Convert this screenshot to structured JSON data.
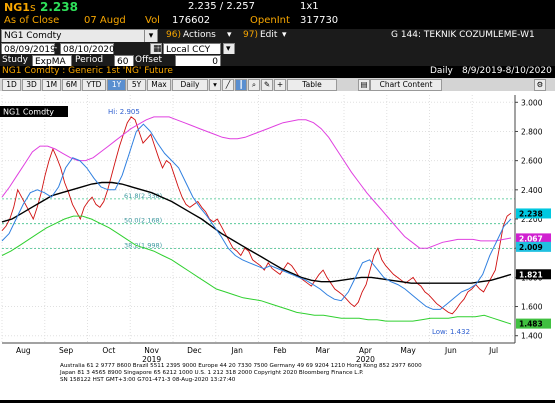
{
  "quote": {
    "ticker": "NG1",
    "s_prefix": "s",
    "last": "2.238",
    "bid_ask": "2.235 / 2.257",
    "size": "1x1",
    "as_of_label": "As of Close",
    "as_of_date": "07 Augd",
    "vol_label": "Vol",
    "vol_value": "176602",
    "oi_label": "OpenInt",
    "oi_value": "317730"
  },
  "titlebar": {
    "security": "NG1 Comdty",
    "num_96": "96)",
    "actions": "Actions",
    "num_97": "97)",
    "edit": "Edit",
    "screen_title": "G 144: TEKNIK COZUMLEME-W1"
  },
  "params": {
    "date_from": "08/09/2019",
    "date_to": "08/10/2020",
    "currency": "Local CCY",
    "study_label": "Study",
    "study_value": "ExpMA",
    "period_label": "Period",
    "period_value": "60",
    "offset_label": "Offset",
    "offset_value": "0"
  },
  "description": {
    "text": "NG1 Comdty : Generic 1st 'NG' Future",
    "freq": "Daily",
    "range": "8/9/2019-8/10/2020"
  },
  "toolbar": {
    "periods": [
      "1D",
      "3D",
      "1M",
      "6M",
      "YTD",
      "1Y",
      "5Y",
      "Max"
    ],
    "selected": "1Y",
    "freq": "Daily",
    "table": "Table",
    "chart_content": "Chart Content"
  },
  "chart_data": {
    "type": "line",
    "ylim": [
      1.35,
      3.05
    ],
    "y_ticks": [
      "3.000",
      "2.800",
      "2.600",
      "2.400",
      "2.200",
      "2.000",
      "1.800",
      "1.600",
      "1.400"
    ],
    "x_labels": [
      "Aug",
      "Sep",
      "Oct",
      "Nov",
      "Dec",
      "Jan",
      "Feb",
      "Mar",
      "Apr",
      "May",
      "Jun",
      "Jul"
    ],
    "year_labels": [
      "2019",
      "2020"
    ],
    "hi_label": "Hi: 2.905",
    "low_label": "Low: 1.432",
    "fib_levels": [
      {
        "label": "61.8(2.338)",
        "value": 2.338
      },
      {
        "label": "50.0(2.168)",
        "value": 2.168
      },
      {
        "label": "38.2(1.998)",
        "value": 1.998
      }
    ],
    "legend": {
      "security": "NG1 Comdty"
    },
    "price_tags": [
      {
        "value": "2.238",
        "color": "#00c8e0"
      },
      {
        "value": "2.067",
        "color": "#d020d0"
      },
      {
        "value": "2.009",
        "color": "#20c0e0"
      },
      {
        "value": "1.821",
        "color": "#000000"
      },
      {
        "value": "1.483",
        "color": "#40c040"
      }
    ],
    "series": [
      {
        "name": "price",
        "color": "#d01010",
        "values": [
          2.12,
          2.15,
          2.2,
          2.28,
          2.4,
          2.35,
          2.3,
          2.25,
          2.2,
          2.28,
          2.38,
          2.5,
          2.6,
          2.68,
          2.62,
          2.55,
          2.45,
          2.38,
          2.3,
          2.25,
          2.2,
          2.28,
          2.32,
          2.35,
          2.3,
          2.28,
          2.32,
          2.4,
          2.5,
          2.6,
          2.7,
          2.78,
          2.86,
          2.9,
          2.88,
          2.8,
          2.72,
          2.75,
          2.78,
          2.7,
          2.62,
          2.55,
          2.6,
          2.58,
          2.5,
          2.42,
          2.35,
          2.3,
          2.28,
          2.3,
          2.32,
          2.28,
          2.25,
          2.2,
          2.18,
          2.2,
          2.15,
          2.1,
          2.05,
          2.0,
          1.98,
          1.95,
          2.0,
          1.98,
          1.92,
          1.9,
          1.88,
          1.85,
          1.9,
          1.86,
          1.84,
          1.82,
          1.86,
          1.9,
          1.88,
          1.84,
          1.8,
          1.78,
          1.76,
          1.74,
          1.78,
          1.82,
          1.85,
          1.8,
          1.76,
          1.72,
          1.7,
          1.68,
          1.65,
          1.62,
          1.6,
          1.63,
          1.7,
          1.75,
          1.85,
          1.95,
          2.0,
          1.92,
          1.88,
          1.85,
          1.82,
          1.8,
          1.78,
          1.76,
          1.78,
          1.8,
          1.76,
          1.74,
          1.7,
          1.68,
          1.65,
          1.62,
          1.6,
          1.58,
          1.56,
          1.55,
          1.58,
          1.62,
          1.65,
          1.7,
          1.72,
          1.75,
          1.72,
          1.7,
          1.75,
          1.8,
          1.85,
          2.0,
          2.15,
          2.22,
          2.24
        ]
      },
      {
        "name": "upper_band",
        "color": "#e040e0",
        "values": [
          2.35,
          2.42,
          2.5,
          2.58,
          2.66,
          2.7,
          2.7,
          2.68,
          2.65,
          2.62,
          2.6,
          2.6,
          2.62,
          2.66,
          2.7,
          2.74,
          2.78,
          2.82,
          2.85,
          2.88,
          2.9,
          2.9,
          2.9,
          2.88,
          2.86,
          2.84,
          2.82,
          2.8,
          2.78,
          2.76,
          2.75,
          2.75,
          2.76,
          2.78,
          2.8,
          2.82,
          2.84,
          2.86,
          2.87,
          2.88,
          2.88,
          2.86,
          2.82,
          2.76,
          2.68,
          2.6,
          2.52,
          2.45,
          2.38,
          2.32,
          2.26,
          2.2,
          2.14,
          2.08,
          2.04,
          2.0,
          2.0,
          2.02,
          2.04,
          2.05,
          2.06,
          2.06,
          2.06,
          2.05,
          2.05,
          2.05,
          2.06,
          2.07
        ]
      },
      {
        "name": "lower_band",
        "color": "#30d030",
        "values": [
          1.95,
          1.98,
          2.02,
          2.06,
          2.1,
          2.14,
          2.17,
          2.2,
          2.22,
          2.22,
          2.2,
          2.17,
          2.14,
          2.1,
          2.06,
          2.02,
          2.0,
          1.98,
          1.95,
          1.92,
          1.88,
          1.84,
          1.8,
          1.76,
          1.72,
          1.7,
          1.68,
          1.66,
          1.65,
          1.64,
          1.62,
          1.6,
          1.58,
          1.56,
          1.55,
          1.54,
          1.54,
          1.53,
          1.52,
          1.52,
          1.52,
          1.51,
          1.51,
          1.5,
          1.5,
          1.5,
          1.5,
          1.51,
          1.52,
          1.52,
          1.52,
          1.53,
          1.53,
          1.53,
          1.54,
          1.52,
          1.5,
          1.48
        ]
      },
      {
        "name": "ema",
        "color": "#000000",
        "values": [
          2.18,
          2.2,
          2.24,
          2.28,
          2.32,
          2.36,
          2.38,
          2.4,
          2.42,
          2.44,
          2.45,
          2.45,
          2.44,
          2.42,
          2.4,
          2.38,
          2.35,
          2.32,
          2.28,
          2.24,
          2.2,
          2.15,
          2.1,
          2.06,
          2.02,
          1.98,
          1.94,
          1.9,
          1.86,
          1.83,
          1.8,
          1.78,
          1.77,
          1.77,
          1.78,
          1.79,
          1.8,
          1.8,
          1.79,
          1.78,
          1.77,
          1.76,
          1.76,
          1.76,
          1.76,
          1.76,
          1.76,
          1.76,
          1.77,
          1.78,
          1.8,
          1.82
        ]
      },
      {
        "name": "fast_ma",
        "color": "#3080e0",
        "values": [
          2.05,
          2.1,
          2.2,
          2.3,
          2.38,
          2.4,
          2.38,
          2.35,
          2.42,
          2.55,
          2.62,
          2.6,
          2.55,
          2.48,
          2.42,
          2.4,
          2.4,
          2.5,
          2.65,
          2.8,
          2.85,
          2.8,
          2.72,
          2.65,
          2.6,
          2.55,
          2.45,
          2.35,
          2.28,
          2.22,
          2.15,
          2.08,
          2.0,
          1.95,
          1.92,
          1.9,
          1.88,
          1.86,
          1.88,
          1.86,
          1.84,
          1.82,
          1.8,
          1.78,
          1.75,
          1.72,
          1.68,
          1.65,
          1.64,
          1.7,
          1.8,
          1.9,
          1.92,
          1.86,
          1.8,
          1.77,
          1.75,
          1.72,
          1.68,
          1.64,
          1.6,
          1.58,
          1.58,
          1.62,
          1.66,
          1.7,
          1.72,
          1.75,
          1.82,
          1.95,
          2.05,
          2.15,
          2.2
        ]
      }
    ],
    "footer_lines": [
      "Australia 61 2 9777 8600 Brazil 5511 2395 9000 Europe 44 20 7330 7500 Germany 49 69 9204 1210 Hong Kong 852 2977 6000",
      "Japan 81 3 4565 8900 Singapore 65 6212 1000 U.S. 1 212 318 2000 Copyright 2020 Bloomberg Finance L.P.",
      "SN 158122 HST GMT+3:00 G701-471-3 08-Aug-2020 13:27:40"
    ]
  }
}
